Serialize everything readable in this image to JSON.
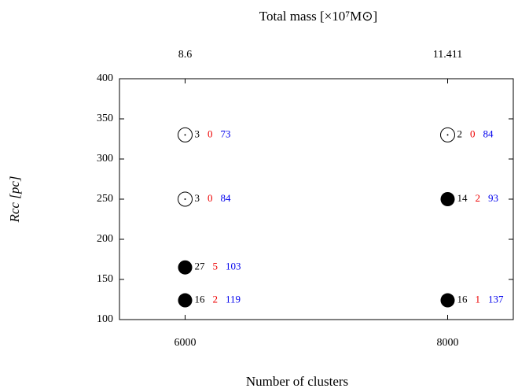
{
  "chart_data": {
    "type": "scatter",
    "title": "Total mass [×10⁷M⊙]",
    "x_label": "Number of clusters",
    "y_label": "Rcc [pc]",
    "xlim": [
      5500,
      8500
    ],
    "ylim": [
      100,
      400
    ],
    "xticks": [
      6000,
      8000
    ],
    "yticks": [
      100,
      150,
      200,
      250,
      300,
      350,
      400
    ],
    "x2ticks": [
      {
        "value": 6000,
        "label": "8.6"
      },
      {
        "value": 8000,
        "label": "11.411"
      }
    ],
    "label_colors": [
      "#000000",
      "#ee0000",
      "#0000ee"
    ],
    "points": [
      {
        "x": 6000,
        "y": 330,
        "filled": false,
        "labels": [
          3,
          0,
          73
        ]
      },
      {
        "x": 6000,
        "y": 250,
        "filled": false,
        "labels": [
          3,
          0,
          84
        ]
      },
      {
        "x": 6000,
        "y": 165,
        "filled": true,
        "labels": [
          27,
          5,
          103
        ]
      },
      {
        "x": 6000,
        "y": 124,
        "filled": true,
        "labels": [
          16,
          2,
          119
        ]
      },
      {
        "x": 8000,
        "y": 330,
        "filled": false,
        "labels": [
          2,
          0,
          84
        ]
      },
      {
        "x": 8000,
        "y": 250,
        "filled": true,
        "labels": [
          14,
          2,
          93
        ]
      },
      {
        "x": 8000,
        "y": 124,
        "filled": true,
        "labels": [
          16,
          1,
          137
        ]
      }
    ]
  }
}
